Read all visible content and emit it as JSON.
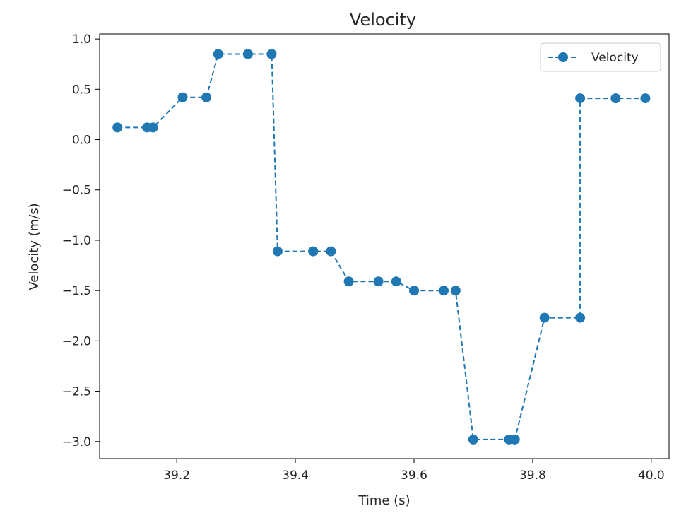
{
  "chart_data": {
    "type": "line",
    "title": "Velocity",
    "xlabel": "Time (s)",
    "ylabel": "Velocity (m/s)",
    "xlim": [
      39.07,
      40.03
    ],
    "ylim": [
      -3.17,
      1.05
    ],
    "xticks": [
      39.2,
      39.4,
      39.6,
      39.8,
      40.0
    ],
    "xtick_labels": [
      "39.2",
      "39.4",
      "39.6",
      "39.8",
      "40.0"
    ],
    "yticks": [
      1.0,
      0.5,
      0.0,
      -0.5,
      -1.0,
      -1.5,
      -2.0,
      -2.5,
      -3.0
    ],
    "ytick_labels": [
      "1.0",
      "0.5",
      "0.0",
      "−0.5",
      "−1.0",
      "−1.5",
      "−2.0",
      "−2.5",
      "−3.0"
    ],
    "grid": false,
    "legend": "top-right",
    "line_style": "dashed",
    "marker": "circle",
    "color": "#1f77b4",
    "series": [
      {
        "name": "Velocity",
        "points": [
          [
            39.1,
            0.12
          ],
          [
            39.15,
            0.12
          ],
          [
            39.16,
            0.12
          ],
          [
            39.21,
            0.42
          ],
          [
            39.25,
            0.42
          ],
          [
            39.27,
            0.85
          ],
          [
            39.32,
            0.85
          ],
          [
            39.36,
            0.85
          ],
          [
            39.37,
            -1.11
          ],
          [
            39.43,
            -1.11
          ],
          [
            39.46,
            -1.11
          ],
          [
            39.49,
            -1.41
          ],
          [
            39.54,
            -1.41
          ],
          [
            39.57,
            -1.41
          ],
          [
            39.6,
            -1.5
          ],
          [
            39.65,
            -1.5
          ],
          [
            39.67,
            -1.5
          ],
          [
            39.7,
            -2.98
          ],
          [
            39.76,
            -2.98
          ],
          [
            39.77,
            -2.98
          ],
          [
            39.82,
            -1.77
          ],
          [
            39.88,
            -1.77
          ],
          [
            39.88,
            0.41
          ],
          [
            39.94,
            0.41
          ],
          [
            39.99,
            0.41
          ]
        ]
      }
    ]
  }
}
